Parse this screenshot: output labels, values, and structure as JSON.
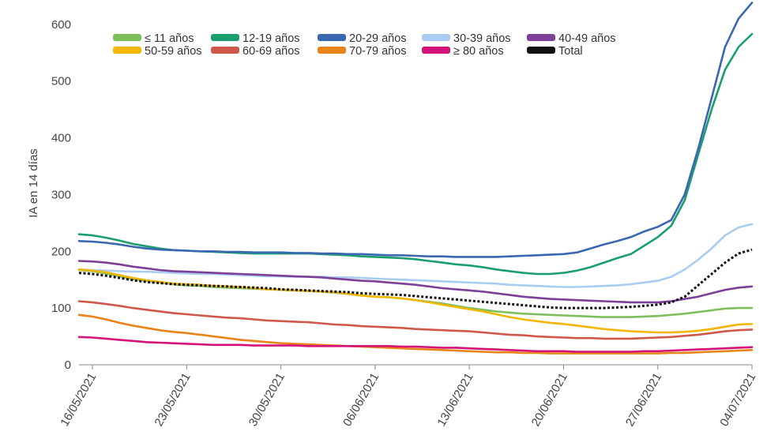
{
  "chart_data": {
    "type": "line",
    "title": "",
    "xlabel": "",
    "ylabel": "IA en 14 días",
    "ylim": [
      0,
      640
    ],
    "yticks": [
      0,
      100,
      200,
      300,
      400,
      500,
      600
    ],
    "x_tick_labels": [
      "16/05/2021",
      "23/05/2021",
      "30/05/2021",
      "06/06/2021",
      "13/06/2021",
      "20/06/2021",
      "27/06/2021",
      "04/07/2021"
    ],
    "x": [
      "15/05/2021",
      "16/05/2021",
      "17/05/2021",
      "18/05/2021",
      "19/05/2021",
      "20/05/2021",
      "21/05/2021",
      "22/05/2021",
      "23/05/2021",
      "24/05/2021",
      "25/05/2021",
      "26/05/2021",
      "27/05/2021",
      "28/05/2021",
      "29/05/2021",
      "30/05/2021",
      "31/05/2021",
      "01/06/2021",
      "02/06/2021",
      "03/06/2021",
      "04/06/2021",
      "05/06/2021",
      "06/06/2021",
      "07/06/2021",
      "08/06/2021",
      "09/06/2021",
      "10/06/2021",
      "11/06/2021",
      "12/06/2021",
      "13/06/2021",
      "14/06/2021",
      "15/06/2021",
      "16/06/2021",
      "17/06/2021",
      "18/06/2021",
      "19/06/2021",
      "20/06/2021",
      "21/06/2021",
      "22/06/2021",
      "23/06/2021",
      "24/06/2021",
      "25/06/2021",
      "26/06/2021",
      "27/06/2021",
      "28/06/2021",
      "29/06/2021",
      "30/06/2021",
      "01/07/2021",
      "02/07/2021",
      "03/07/2021",
      "04/07/2021"
    ],
    "legend_position": "top",
    "grid": false,
    "series": [
      {
        "name": "≤ 11 años",
        "color": "#7dbf5a",
        "dashed": false,
        "values": [
          167,
          165,
          161,
          156,
          151,
          148,
          145,
          142,
          140,
          139,
          137,
          136,
          135,
          134,
          133,
          132,
          131,
          130,
          129,
          127,
          125,
          122,
          120,
          119,
          117,
          114,
          111,
          108,
          104,
          100,
          97,
          94,
          92,
          90,
          89,
          88,
          87,
          86,
          85,
          84,
          84,
          84,
          85,
          86,
          88,
          90,
          93,
          96,
          99,
          100,
          100
        ]
      },
      {
        "name": "12-19 años",
        "color": "#1a9e6e",
        "dashed": false,
        "values": [
          230,
          228,
          224,
          219,
          213,
          209,
          205,
          202,
          201,
          200,
          199,
          198,
          197,
          196,
          196,
          196,
          196,
          196,
          195,
          194,
          193,
          191,
          190,
          189,
          188,
          186,
          183,
          180,
          177,
          175,
          172,
          168,
          165,
          162,
          160,
          160,
          162,
          166,
          172,
          180,
          188,
          195,
          210,
          225,
          245,
          290,
          370,
          450,
          520,
          560,
          583
        ]
      },
      {
        "name": "20-29 años",
        "color": "#3a67b0",
        "dashed": false,
        "values": [
          218,
          217,
          215,
          212,
          208,
          205,
          203,
          202,
          201,
          200,
          200,
          199,
          199,
          198,
          198,
          198,
          197,
          197,
          196,
          196,
          195,
          195,
          194,
          193,
          193,
          192,
          191,
          191,
          190,
          190,
          190,
          190,
          191,
          192,
          193,
          194,
          195,
          198,
          205,
          212,
          218,
          225,
          235,
          243,
          255,
          300,
          380,
          470,
          560,
          610,
          638
        ]
      },
      {
        "name": "30-39 años",
        "color": "#a9cdf2",
        "dashed": false,
        "values": [
          168,
          167,
          166,
          165,
          164,
          164,
          163,
          162,
          161,
          160,
          160,
          159,
          158,
          157,
          156,
          156,
          155,
          155,
          155,
          154,
          154,
          153,
          152,
          151,
          150,
          149,
          148,
          147,
          146,
          145,
          144,
          143,
          141,
          140,
          139,
          138,
          137,
          137,
          138,
          139,
          140,
          142,
          145,
          148,
          155,
          168,
          185,
          205,
          228,
          242,
          248
        ]
      },
      {
        "name": "40-49 años",
        "color": "#7e3f98",
        "dashed": false,
        "values": [
          183,
          182,
          180,
          177,
          173,
          170,
          167,
          165,
          164,
          163,
          162,
          161,
          160,
          159,
          158,
          157,
          156,
          155,
          154,
          152,
          150,
          148,
          147,
          145,
          143,
          141,
          138,
          135,
          133,
          131,
          129,
          126,
          123,
          120,
          118,
          116,
          115,
          114,
          113,
          112,
          111,
          110,
          110,
          110,
          112,
          116,
          120,
          126,
          132,
          136,
          138
        ]
      },
      {
        "name": "50-59 años",
        "color": "#f2b705",
        "dashed": false,
        "values": [
          168,
          166,
          163,
          158,
          153,
          149,
          146,
          143,
          142,
          141,
          139,
          138,
          137,
          135,
          133,
          132,
          131,
          130,
          129,
          128,
          125,
          122,
          120,
          119,
          117,
          114,
          110,
          106,
          102,
          98,
          94,
          89,
          84,
          80,
          77,
          74,
          72,
          69,
          66,
          63,
          61,
          59,
          58,
          57,
          57,
          58,
          60,
          63,
          67,
          71,
          72
        ]
      },
      {
        "name": "60-69 años",
        "color": "#d0584a",
        "dashed": false,
        "values": [
          112,
          110,
          107,
          104,
          100,
          97,
          94,
          91,
          89,
          87,
          85,
          83,
          82,
          80,
          78,
          77,
          76,
          75,
          73,
          71,
          70,
          68,
          67,
          66,
          65,
          63,
          62,
          61,
          60,
          59,
          57,
          55,
          53,
          52,
          50,
          49,
          48,
          47,
          47,
          46,
          46,
          46,
          47,
          48,
          49,
          51,
          53,
          56,
          59,
          61,
          62
        ]
      },
      {
        "name": "70-79 años",
        "color": "#e88418",
        "dashed": false,
        "values": [
          88,
          85,
          80,
          74,
          69,
          65,
          61,
          58,
          56,
          53,
          50,
          47,
          44,
          42,
          40,
          38,
          37,
          36,
          35,
          34,
          33,
          32,
          31,
          30,
          29,
          28,
          27,
          26,
          25,
          24,
          23,
          22,
          22,
          21,
          21,
          20,
          20,
          20,
          20,
          20,
          20,
          20,
          20,
          20,
          21,
          21,
          22,
          23,
          24,
          25,
          26
        ]
      },
      {
        "name": "≥ 80 años",
        "color": "#d4127a",
        "dashed": false,
        "values": [
          49,
          48,
          46,
          44,
          42,
          40,
          39,
          38,
          37,
          36,
          35,
          35,
          35,
          34,
          34,
          34,
          34,
          33,
          33,
          33,
          33,
          33,
          33,
          33,
          32,
          32,
          31,
          30,
          30,
          29,
          28,
          27,
          26,
          25,
          24,
          24,
          24,
          23,
          23,
          23,
          23,
          23,
          24,
          24,
          25,
          26,
          27,
          28,
          29,
          30,
          31
        ]
      },
      {
        "name": "Total",
        "color": "#111111",
        "dashed": true,
        "values": [
          162,
          160,
          157,
          153,
          149,
          146,
          144,
          142,
          141,
          140,
          139,
          138,
          137,
          136,
          135,
          133,
          132,
          131,
          130,
          129,
          128,
          126,
          125,
          124,
          123,
          121,
          119,
          117,
          115,
          113,
          111,
          109,
          107,
          105,
          103,
          101,
          100,
          100,
          100,
          100,
          101,
          102,
          104,
          106,
          110,
          120,
          140,
          160,
          180,
          196,
          203
        ]
      }
    ]
  }
}
